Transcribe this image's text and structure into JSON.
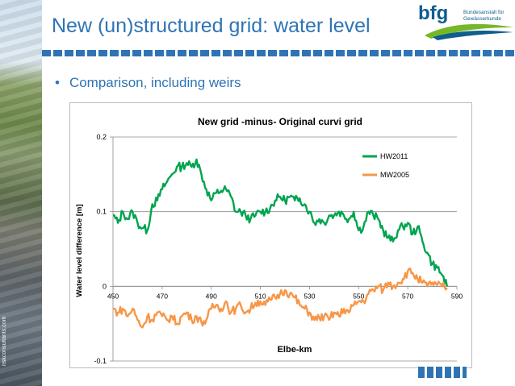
{
  "slide": {
    "title": "New (un)structured grid: water level",
    "bullet": "Comparison, including weirs",
    "credit": "riskconsultants.com",
    "logo": {
      "text": "bfg",
      "sub1": "Bundesanstalt für",
      "sub2": "Gewässerkunde"
    }
  },
  "colors": {
    "title": "#2e74b5",
    "hw2011": "#00a44f",
    "mw2005": "#f79646"
  },
  "chart_data": {
    "type": "line",
    "title": "New grid   -minus-   Original curvi grid",
    "xlabel": "Elbe-km",
    "ylabel": "Water level difference [m]",
    "xlim": [
      450,
      590
    ],
    "ylim": [
      -0.1,
      0.2
    ],
    "xticks": [
      450,
      470,
      490,
      510,
      530,
      550,
      570,
      590
    ],
    "yticks": [
      0.2,
      0.1,
      0,
      -0.1
    ],
    "ytick_labels": [
      "0.2",
      "0.1",
      "0",
      "-0.1"
    ],
    "grid": "horizontal major gridlines",
    "legend_position": "top-right",
    "series": [
      {
        "name": "HW2011",
        "color": "#00a44f",
        "x": [
          450,
          452,
          454,
          456,
          458,
          460,
          462,
          464,
          466,
          468,
          470,
          472,
          474,
          476,
          478,
          480,
          482,
          484,
          486,
          488,
          490,
          492,
          494,
          496,
          498,
          500,
          502,
          504,
          506,
          508,
          510,
          512,
          514,
          516,
          518,
          520,
          522,
          524,
          526,
          528,
          530,
          532,
          534,
          536,
          538,
          540,
          542,
          544,
          546,
          548,
          550,
          552,
          554,
          556,
          558,
          560,
          562,
          564,
          566,
          568,
          570,
          572,
          574,
          576,
          578,
          580,
          582,
          584,
          586
        ],
        "y": [
          0.095,
          0.085,
          0.1,
          0.09,
          0.1,
          0.085,
          0.078,
          0.075,
          0.11,
          0.115,
          0.13,
          0.14,
          0.15,
          0.16,
          0.16,
          0.165,
          0.16,
          0.17,
          0.15,
          0.13,
          0.115,
          0.125,
          0.128,
          0.13,
          0.12,
          0.1,
          0.1,
          0.095,
          0.09,
          0.095,
          0.1,
          0.1,
          0.105,
          0.115,
          0.12,
          0.115,
          0.12,
          0.115,
          0.118,
          0.11,
          0.1,
          0.085,
          0.09,
          0.085,
          0.095,
          0.095,
          0.1,
          0.095,
          0.09,
          0.1,
          0.075,
          0.08,
          0.1,
          0.095,
          0.09,
          0.075,
          0.065,
          0.06,
          0.075,
          0.08,
          0.085,
          0.07,
          0.08,
          0.06,
          0.045,
          0.03,
          0.025,
          0.015,
          0.0
        ]
      },
      {
        "name": "MW2005",
        "color": "#f79646",
        "x": [
          450,
          452,
          454,
          456,
          458,
          460,
          462,
          464,
          466,
          468,
          470,
          472,
          474,
          476,
          478,
          480,
          482,
          484,
          486,
          488,
          490,
          492,
          494,
          496,
          498,
          500,
          502,
          504,
          506,
          508,
          510,
          512,
          514,
          516,
          518,
          520,
          522,
          524,
          526,
          528,
          530,
          532,
          534,
          536,
          538,
          540,
          542,
          544,
          546,
          548,
          550,
          552,
          554,
          556,
          558,
          560,
          562,
          564,
          566,
          568,
          570,
          572,
          574,
          576,
          578,
          580,
          582,
          584,
          586
        ],
        "y": [
          -0.03,
          -0.035,
          -0.03,
          -0.04,
          -0.03,
          -0.045,
          -0.055,
          -0.04,
          -0.045,
          -0.035,
          -0.04,
          -0.045,
          -0.04,
          -0.05,
          -0.04,
          -0.035,
          -0.045,
          -0.04,
          -0.048,
          -0.045,
          -0.03,
          -0.025,
          -0.03,
          -0.02,
          -0.035,
          -0.03,
          -0.025,
          -0.035,
          -0.03,
          -0.022,
          -0.02,
          -0.025,
          -0.018,
          -0.015,
          -0.01,
          -0.005,
          -0.01,
          -0.015,
          -0.025,
          -0.03,
          -0.035,
          -0.045,
          -0.042,
          -0.04,
          -0.045,
          -0.035,
          -0.04,
          -0.03,
          -0.035,
          -0.025,
          -0.02,
          -0.02,
          -0.01,
          -0.005,
          0.0,
          -0.005,
          0.005,
          0.0,
          0.005,
          0.01,
          0.02,
          0.018,
          0.01,
          0.005,
          0.0,
          0.005,
          0.002,
          0.0,
          -0.002
        ]
      }
    ]
  }
}
